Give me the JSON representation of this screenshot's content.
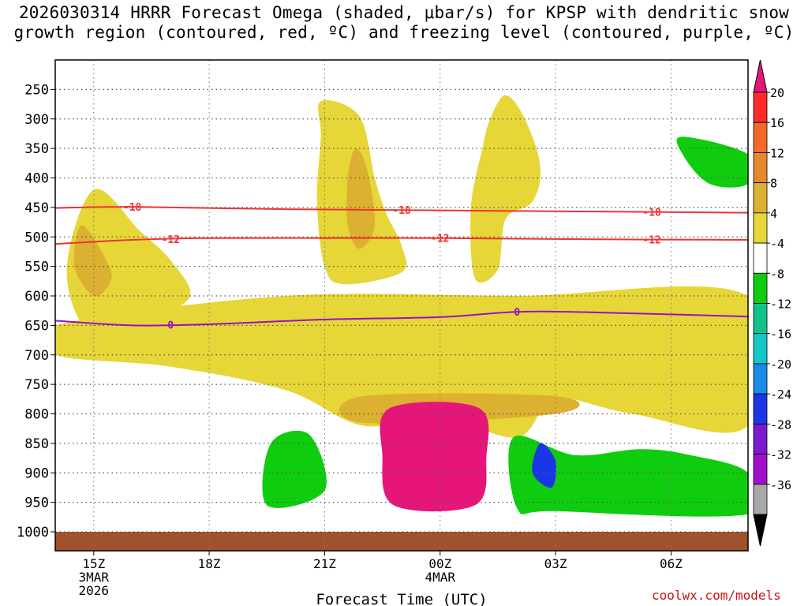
{
  "title_line1": "2026030314 HRRR Forecast Omega (shaded, μbar/s) for KPSP with dendritic snow",
  "title_line2": "growth region (contoured, red, ºC) and freezing level (contoured, purple, ºC)",
  "watermark": "coolwx.com/models",
  "chart_data": {
    "type": "contour-filled",
    "title": "2026030314 HRRR Forecast Omega (shaded, μbar/s) for KPSP with dendritic snow growth region (contoured, red, ºC) and freezing level (contoured, purple, ºC)",
    "xlabel": "Forecast Time (UTC)",
    "ylabel": "",
    "x_ticks": [
      {
        "label": "15Z",
        "sub1": "3MAR",
        "sub2": "2026",
        "hour": 15
      },
      {
        "label": "18Z",
        "sub1": "",
        "sub2": "",
        "hour": 18
      },
      {
        "label": "21Z",
        "sub1": "",
        "sub2": "",
        "hour": 21
      },
      {
        "label": "00Z",
        "sub1": "4MAR",
        "sub2": "",
        "hour": 24
      },
      {
        "label": "03Z",
        "sub1": "",
        "sub2": "",
        "hour": 27
      },
      {
        "label": "06Z",
        "sub1": "",
        "sub2": "",
        "hour": 30
      }
    ],
    "x_range_hours": [
      14,
      32
    ],
    "y_levels_hpa": [
      250,
      300,
      350,
      400,
      450,
      500,
      550,
      600,
      650,
      700,
      750,
      800,
      850,
      900,
      950,
      1000
    ],
    "y_range_hpa": [
      200,
      1000
    ],
    "colorbar": {
      "labels": [
        "20",
        "16",
        "12",
        "8",
        "4",
        "-4",
        "-8",
        "-12",
        "-16",
        "-20",
        "-24",
        "-28",
        "-32",
        "-36"
      ],
      "colors": [
        "#ff2a2a",
        "#f26a2a",
        "#e58a2a",
        "#dcb030",
        "#e6d637",
        "#ffffff",
        "#0fcc0f",
        "#11c28a",
        "#15c7c7",
        "#1a8be6",
        "#1a36e6",
        "#7a1acc",
        "#a010c8",
        "#a8a8a8"
      ],
      "top_color": "#e6157a",
      "bottom_color": "#000000"
    },
    "contours": [
      {
        "name": "dgz-minus18",
        "value": -18,
        "color": "#ee3333",
        "label": "-18",
        "points": [
          [
            14,
            451
          ],
          [
            16,
            449
          ],
          [
            20,
            453
          ],
          [
            24,
            455
          ],
          [
            28,
            457
          ],
          [
            32,
            459
          ]
        ]
      },
      {
        "name": "dgz-minus12",
        "value": -12,
        "color": "#ee3333",
        "label": "-12",
        "points": [
          [
            14,
            512
          ],
          [
            16,
            505
          ],
          [
            18,
            502
          ],
          [
            21,
            502
          ],
          [
            24,
            502
          ],
          [
            28,
            504
          ],
          [
            32,
            505
          ]
        ]
      },
      {
        "name": "freezing-level",
        "value": 0,
        "color": "#9a10c8",
        "label": "0",
        "points": [
          [
            14,
            642
          ],
          [
            16,
            650
          ],
          [
            18,
            648
          ],
          [
            21,
            640
          ],
          [
            24,
            636
          ],
          [
            26,
            627
          ],
          [
            28,
            628
          ],
          [
            32,
            635
          ]
        ]
      }
    ],
    "omega_regions": [
      {
        "value": 4,
        "color": "#e6d637",
        "points": [
          [
            15,
            670
          ],
          [
            14.3,
            560
          ],
          [
            15,
            420
          ],
          [
            16.2,
            490
          ],
          [
            17,
            540
          ],
          [
            17.5,
            600
          ],
          [
            16.5,
            640
          ]
        ]
      },
      {
        "value": 4,
        "color": "#e6d637",
        "points": [
          [
            20.9,
            270
          ],
          [
            21.9,
            295
          ],
          [
            22.3,
            400
          ],
          [
            22.6,
            460
          ],
          [
            23,
            515
          ],
          [
            23,
            560
          ],
          [
            21.5,
            580
          ],
          [
            21,
            550
          ],
          [
            20.8,
            440
          ],
          [
            20.9,
            330
          ]
        ]
      },
      {
        "value": 4,
        "color": "#e6d637",
        "points": [
          [
            25.7,
            260
          ],
          [
            26.2,
            300
          ],
          [
            26.6,
            380
          ],
          [
            26.4,
            440
          ],
          [
            25.7,
            470
          ],
          [
            25.5,
            555
          ],
          [
            24.9,
            570
          ],
          [
            24.8,
            450
          ],
          [
            25.1,
            350
          ],
          [
            25.3,
            300
          ]
        ]
      },
      {
        "value": 4,
        "color": "#e6d637",
        "points": [
          [
            14,
            650
          ],
          [
            20,
            600
          ],
          [
            26,
            600
          ],
          [
            32,
            600
          ],
          [
            32,
            820
          ],
          [
            29,
            800
          ],
          [
            27,
            775
          ],
          [
            26,
            840
          ],
          [
            24,
            805
          ],
          [
            22,
            820
          ],
          [
            20,
            760
          ],
          [
            17,
            720
          ],
          [
            14,
            700
          ]
        ]
      },
      {
        "value": 8,
        "color": "#dcb030",
        "points": [
          [
            15,
            600
          ],
          [
            14.5,
            550
          ],
          [
            14.7,
            480
          ],
          [
            15.4,
            550
          ],
          [
            15.4,
            580
          ]
        ]
      },
      {
        "value": 8,
        "color": "#dcb030",
        "points": [
          [
            21.8,
            350
          ],
          [
            22.1,
            385
          ],
          [
            22.3,
            480
          ],
          [
            21.9,
            520
          ],
          [
            21.6,
            480
          ],
          [
            21.6,
            400
          ]
        ]
      },
      {
        "value": 8,
        "color": "#dcb030",
        "points": [
          [
            22,
            770
          ],
          [
            27,
            770
          ],
          [
            27,
            800
          ],
          [
            22,
            815
          ]
        ]
      },
      {
        "value": 20,
        "color": "#e6157a",
        "points": [
          [
            22.7,
            790
          ],
          [
            25,
            790
          ],
          [
            25.2,
            875
          ],
          [
            24.9,
            955
          ],
          [
            22.8,
            955
          ],
          [
            22.5,
            870
          ]
        ]
      },
      {
        "value": -4,
        "color": "#0fcc0f",
        "points": [
          [
            19.6,
            850
          ],
          [
            20.6,
            835
          ],
          [
            21,
            930
          ],
          [
            19.5,
            955
          ]
        ]
      },
      {
        "value": -4,
        "color": "#0fcc0f",
        "points": [
          [
            25.9,
            840
          ],
          [
            27.5,
            870
          ],
          [
            29.2,
            860
          ],
          [
            30.5,
            870
          ],
          [
            32,
            900
          ],
          [
            32,
            970
          ],
          [
            27,
            965
          ],
          [
            26,
            960
          ]
        ]
      },
      {
        "value": -20,
        "color": "#1a36e6",
        "points": [
          [
            26.6,
            850
          ],
          [
            27,
            880
          ],
          [
            26.9,
            925
          ],
          [
            26.4,
            900
          ]
        ]
      },
      {
        "value": -8,
        "color": "#0fcc0f",
        "points": [
          [
            30.3,
            330
          ],
          [
            32,
            360
          ],
          [
            32,
            410
          ],
          [
            31,
            410
          ],
          [
            30.3,
            360
          ]
        ]
      }
    ]
  }
}
